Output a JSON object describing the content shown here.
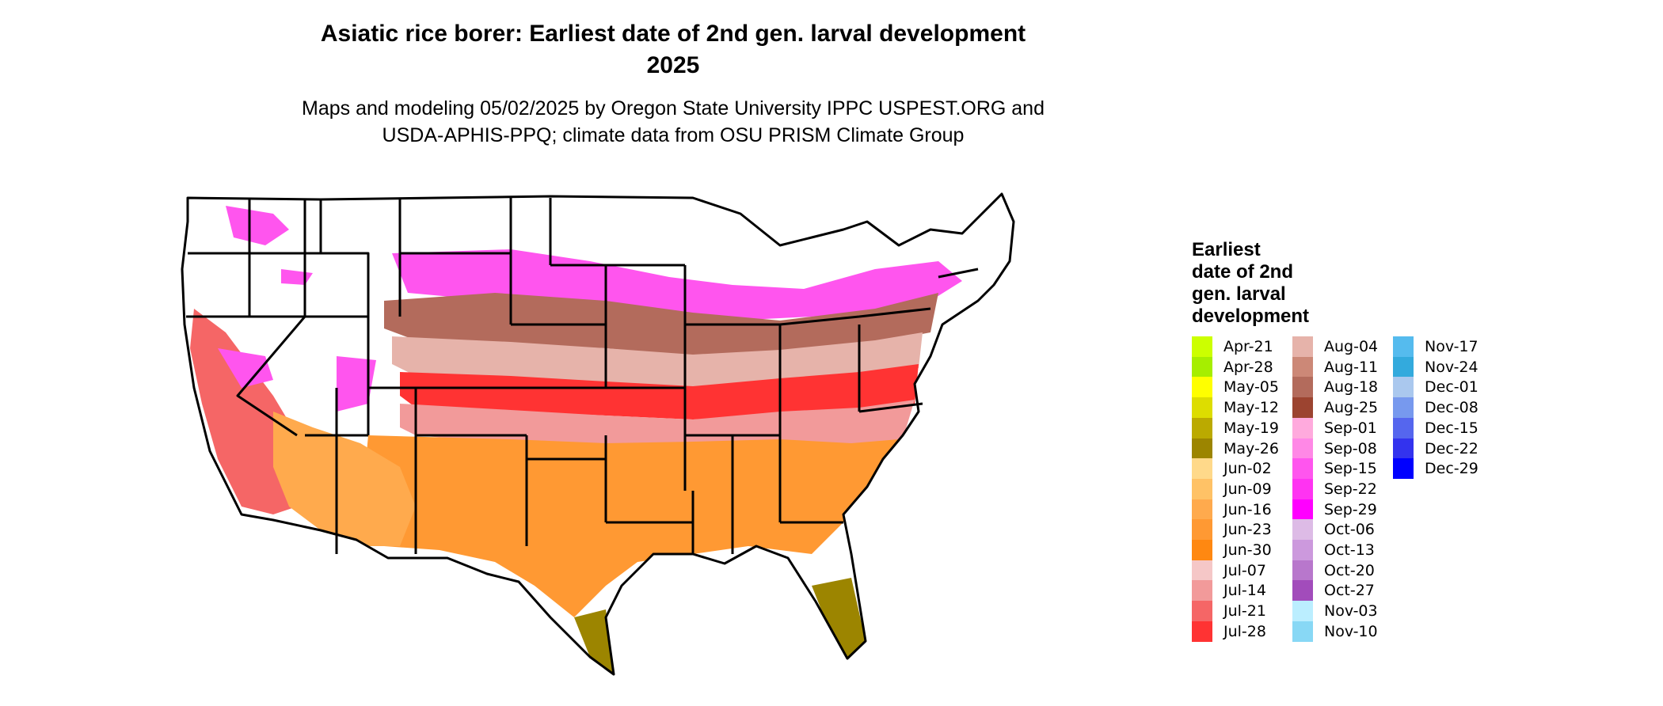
{
  "title": {
    "line1": "Asiatic rice borer: Earliest date of 2nd gen. larval development",
    "line2": "2025"
  },
  "subtitle": {
    "line1": "Maps and modeling 05/02/2025 by Oregon State University IPPC USPEST.ORG and",
    "line2": "USDA-APHIS-PPQ; climate data from OSU PRISM Climate Group"
  },
  "legend": {
    "title_lines": [
      "Earliest",
      "date of 2nd",
      "gen. larval",
      "development"
    ],
    "items": [
      {
        "label": "Apr-21",
        "color": "#ccff00"
      },
      {
        "label": "Apr-28",
        "color": "#a6ee00"
      },
      {
        "label": "May-05",
        "color": "#ffff00"
      },
      {
        "label": "May-12",
        "color": "#dddd00"
      },
      {
        "label": "May-19",
        "color": "#bbaa00"
      },
      {
        "label": "May-26",
        "color": "#9c8500"
      },
      {
        "label": "Jun-02",
        "color": "#ffd98a"
      },
      {
        "label": "Jun-09",
        "color": "#ffc266"
      },
      {
        "label": "Jun-16",
        "color": "#ffaa4d"
      },
      {
        "label": "Jun-23",
        "color": "#ff9933"
      },
      {
        "label": "Jun-30",
        "color": "#ff8811"
      },
      {
        "label": "Jul-07",
        "color": "#f5c7c7"
      },
      {
        "label": "Jul-14",
        "color": "#f29a9a"
      },
      {
        "label": "Jul-21",
        "color": "#f56666"
      },
      {
        "label": "Jul-28",
        "color": "#ff3333"
      },
      {
        "label": "Aug-04",
        "color": "#e6b3aa"
      },
      {
        "label": "Aug-11",
        "color": "#cc8877"
      },
      {
        "label": "Aug-18",
        "color": "#b36b5c"
      },
      {
        "label": "Aug-25",
        "color": "#9c4430"
      },
      {
        "label": "Sep-01",
        "color": "#ffaadd"
      },
      {
        "label": "Sep-08",
        "color": "#ff88e6"
      },
      {
        "label": "Sep-15",
        "color": "#ff55ee"
      },
      {
        "label": "Sep-22",
        "color": "#ff33f2"
      },
      {
        "label": "Sep-29",
        "color": "#ff00ff"
      },
      {
        "label": "Oct-06",
        "color": "#ddbbe6"
      },
      {
        "label": "Oct-13",
        "color": "#cc99dd"
      },
      {
        "label": "Oct-20",
        "color": "#b877cc"
      },
      {
        "label": "Oct-27",
        "color": "#a24cbb"
      },
      {
        "label": "Nov-03",
        "color": "#bbeeff"
      },
      {
        "label": "Nov-10",
        "color": "#88d8f5"
      },
      {
        "label": "Nov-17",
        "color": "#55bbee"
      },
      {
        "label": "Nov-24",
        "color": "#33aadd"
      },
      {
        "label": "Dec-01",
        "color": "#aac8ee"
      },
      {
        "label": "Dec-08",
        "color": "#7799ee"
      },
      {
        "label": "Dec-15",
        "color": "#5566ee"
      },
      {
        "label": "Dec-22",
        "color": "#3333ee"
      },
      {
        "label": "Dec-29",
        "color": "#0000ff"
      }
    ]
  }
}
